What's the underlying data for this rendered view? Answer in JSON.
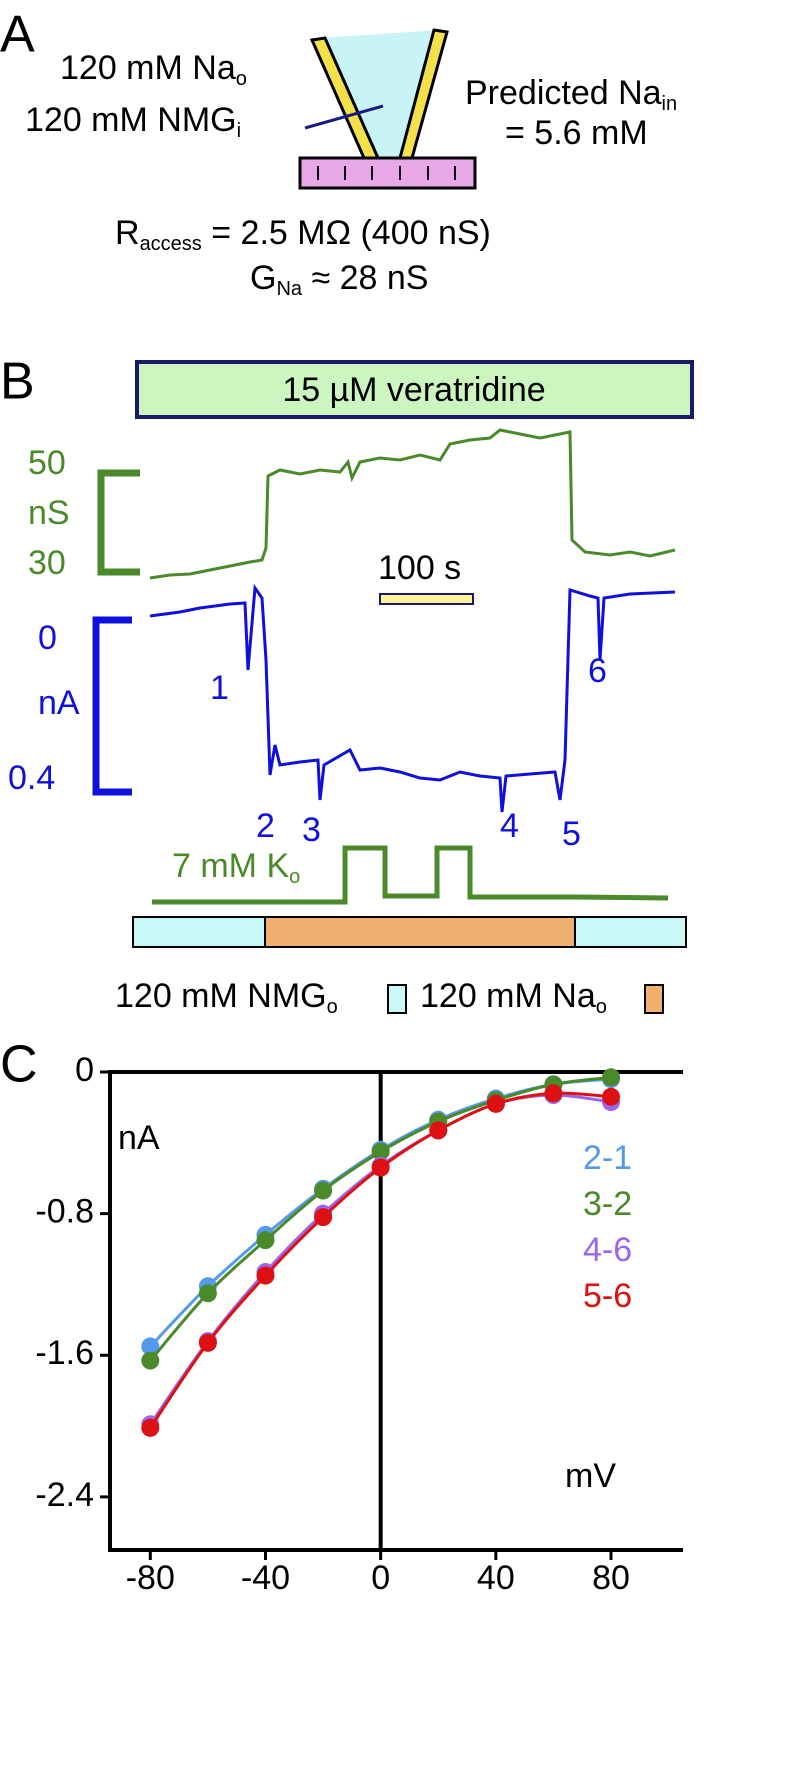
{
  "panel_a": {
    "label": "A",
    "na_out": {
      "text": "120 mM Na",
      "sub": "o"
    },
    "nmg_in": {
      "text": "120 mM NMG",
      "sub": "i"
    },
    "predicted": {
      "text": "Predicted Na",
      "sub": "in",
      "line2": "= 5.6 mM"
    },
    "access": {
      "text": "R",
      "sub": "access",
      "rest": " = 2.5 MΩ (400 nS)"
    },
    "gna": {
      "text": "G",
      "sub": "Na",
      "rest": " ≈ 28 nS"
    }
  },
  "panel_b": {
    "label": "B",
    "drug": "15 µM veratridine",
    "g_scale": {
      "top": "50",
      "unit": "nS",
      "bottom": "30"
    },
    "i_scale": {
      "top": "0",
      "unit": "nA",
      "bottom": "0.4"
    },
    "time_scale": "100 s",
    "markers": [
      "1",
      "2",
      "3",
      "4",
      "5",
      "6"
    ],
    "k_label": {
      "text": "7 mM K",
      "sub": "o"
    },
    "nmg_legend": {
      "text": "120 mM NMG",
      "sub": "o"
    },
    "na_legend": {
      "text": "120 mM Na",
      "sub": "o"
    }
  },
  "chart_data": {
    "type": "scatter",
    "label": "C",
    "y_label": "nA",
    "x_label": "mV",
    "x": [
      -80,
      -60,
      -40,
      -20,
      0,
      20,
      40,
      60,
      80
    ],
    "xlim": [
      -94,
      105
    ],
    "xticks": [
      -80,
      -40,
      0,
      40,
      80
    ],
    "ylim": [
      -2.7,
      0
    ],
    "yticks": [
      0,
      -0.8,
      -1.6,
      -2.4
    ],
    "series": [
      {
        "name": "2-1",
        "color": "#5599ee",
        "values": [
          -1.55,
          -1.21,
          -0.92,
          -0.66,
          -0.44,
          -0.27,
          -0.15,
          -0.07,
          -0.04
        ]
      },
      {
        "name": "3-2",
        "color": "#4a8a2a",
        "values": [
          -1.63,
          -1.25,
          -0.95,
          -0.67,
          -0.45,
          -0.28,
          -0.16,
          -0.07,
          -0.03
        ]
      },
      {
        "name": "4-6",
        "color": "#9a66ee",
        "values": [
          -1.99,
          -1.52,
          -1.13,
          -0.8,
          -0.53,
          -0.33,
          -0.18,
          -0.13,
          -0.17
        ]
      },
      {
        "name": "5-6",
        "color": "#dd1111",
        "values": [
          -2.01,
          -1.53,
          -1.15,
          -0.82,
          -0.54,
          -0.33,
          -0.18,
          -0.12,
          -0.14
        ]
      }
    ]
  }
}
